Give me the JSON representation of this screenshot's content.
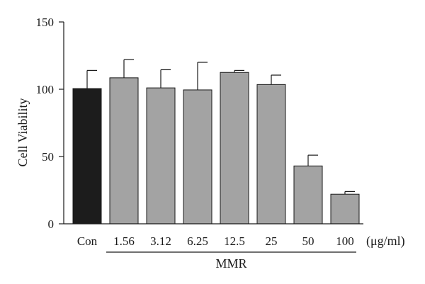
{
  "chart_data": {
    "type": "bar",
    "title": "",
    "ylabel": "Cell Viability",
    "xlabel": "",
    "x_unit": "(μg/ml)",
    "group_label": "MMR",
    "ylim": [
      0,
      150
    ],
    "yticks": [
      0,
      50,
      100,
      150
    ],
    "grid": false,
    "legend": "none",
    "categories": [
      "Con",
      "1.56",
      "3.12",
      "6.25",
      "12.5",
      "25",
      "50",
      "100"
    ],
    "values": [
      100.5,
      108.5,
      101.0,
      99.5,
      112.5,
      103.5,
      43.0,
      22.0
    ],
    "errors": [
      13.5,
      13.5,
      13.5,
      20.5,
      1.5,
      7.0,
      8.0,
      2.0
    ],
    "colors": [
      "#1c1c1c",
      "#a3a3a3",
      "#a3a3a3",
      "#a3a3a3",
      "#a3a3a3",
      "#a3a3a3",
      "#a3a3a3",
      "#a3a3a3"
    ],
    "group_members": [
      "1.56",
      "3.12",
      "6.25",
      "12.5",
      "25",
      "50",
      "100"
    ]
  }
}
